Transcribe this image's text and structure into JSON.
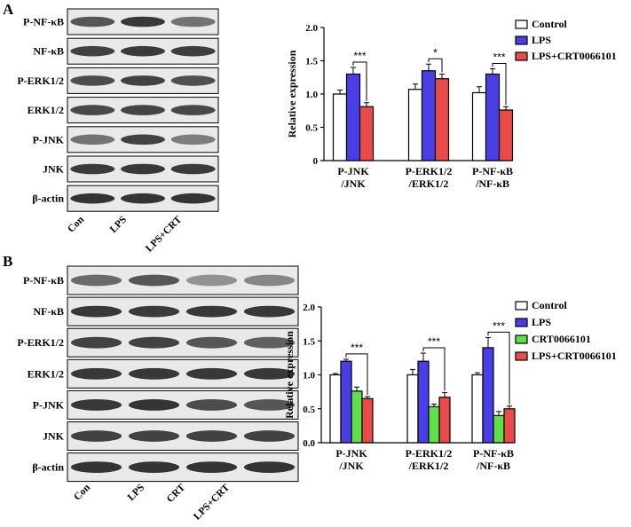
{
  "panels": [
    {
      "letter": "A",
      "blot": {
        "rows": [
          {
            "label": "P-NF-κB",
            "bands": [
              0.75,
              0.9,
              0.6
            ]
          },
          {
            "label": "NF-κB",
            "bands": [
              0.85,
              0.88,
              0.86
            ]
          },
          {
            "label": "P-ERK1/2",
            "bands": [
              0.8,
              0.85,
              0.78
            ]
          },
          {
            "label": "ERK1/2",
            "bands": [
              0.82,
              0.84,
              0.82
            ]
          },
          {
            "label": "P-JNK",
            "bands": [
              0.6,
              0.85,
              0.55
            ]
          },
          {
            "label": "JNK",
            "bands": [
              0.88,
              0.9,
              0.88
            ]
          },
          {
            "label": "β-actin",
            "bands": [
              0.92,
              0.92,
              0.92
            ]
          }
        ],
        "lanes": [
          "Con",
          "LPS",
          "LPS+CRT"
        ]
      },
      "chart": {
        "ylabel": "Relative expression",
        "ylim": [
          0,
          2.0
        ],
        "yticks": [
          "0",
          "0.5",
          "1.0",
          "1.5",
          "2.0"
        ],
        "categories": [
          [
            "P-JNK",
            "/JNK"
          ],
          [
            "P-ERK1/2",
            "/ERK1/2"
          ],
          [
            "P-NF-κB",
            "/NF-κB"
          ]
        ],
        "series": [
          {
            "name": "Control",
            "color": "#ffffff",
            "values": [
              1.0,
              1.07,
              1.02
            ],
            "errors": [
              0.06,
              0.08,
              0.09
            ]
          },
          {
            "name": "LPS",
            "color": "#4a3ee6",
            "values": [
              1.3,
              1.35,
              1.3
            ],
            "errors": [
              0.1,
              0.1,
              0.08
            ]
          },
          {
            "name": "LPS+CRT0066101",
            "color": "#ea4a4a",
            "values": [
              0.81,
              1.23,
              0.76
            ],
            "errors": [
              0.06,
              0.07,
              0.05
            ]
          }
        ],
        "significance": [
          {
            "label": "***",
            "category": 0,
            "from": 1,
            "to": 2
          },
          {
            "label": "*",
            "category": 1,
            "from": 1,
            "to": 2
          },
          {
            "label": "***",
            "category": 2,
            "from": 1,
            "to": 2
          }
        ]
      }
    },
    {
      "letter": "B",
      "blot": {
        "rows": [
          {
            "label": "P-NF-κB",
            "bands": [
              0.65,
              0.75,
              0.45,
              0.5
            ]
          },
          {
            "label": "NF-κB",
            "bands": [
              0.9,
              0.88,
              0.9,
              0.9
            ]
          },
          {
            "label": "P-ERK1/2",
            "bands": [
              0.85,
              0.85,
              0.75,
              0.7
            ]
          },
          {
            "label": "ERK1/2",
            "bands": [
              0.9,
              0.9,
              0.9,
              0.9
            ]
          },
          {
            "label": "P-JNK",
            "bands": [
              0.9,
              0.92,
              0.8,
              0.75
            ]
          },
          {
            "label": "JNK",
            "bands": [
              0.85,
              0.85,
              0.85,
              0.85
            ]
          },
          {
            "label": "β-actin",
            "bands": [
              0.92,
              0.92,
              0.92,
              0.92
            ]
          }
        ],
        "lanes": [
          "Con",
          "LPS",
          "CRT",
          "LPS+CRT"
        ]
      },
      "chart": {
        "ylabel": "Relative expression",
        "ylim": [
          0,
          2.0
        ],
        "yticks": [
          "0.0",
          "0.5",
          "1.0",
          "1.5",
          "2.0"
        ],
        "categories": [
          [
            "P-JNK",
            "/JNK"
          ],
          [
            "P-ERK1/2",
            "/ERK1/2"
          ],
          [
            "P-NF-κB",
            "/NF-κB"
          ]
        ],
        "series": [
          {
            "name": "Control",
            "color": "#ffffff",
            "values": [
              1.0,
              1.0,
              1.0
            ],
            "errors": [
              0.02,
              0.08,
              0.03
            ]
          },
          {
            "name": "LPS",
            "color": "#4a3ee6",
            "values": [
              1.2,
              1.2,
              1.4
            ],
            "errors": [
              0.03,
              0.12,
              0.15
            ]
          },
          {
            "name": "CRT0066101",
            "color": "#5fe04a",
            "values": [
              0.76,
              0.53,
              0.4
            ],
            "errors": [
              0.06,
              0.04,
              0.06
            ]
          },
          {
            "name": "LPS+CRT0066101",
            "color": "#ea4a4a",
            "values": [
              0.65,
              0.67,
              0.5
            ],
            "errors": [
              0.03,
              0.07,
              0.04
            ]
          }
        ],
        "significance": [
          {
            "label": "***",
            "category": 0,
            "from": 1,
            "to": 3
          },
          {
            "label": "***",
            "category": 1,
            "from": 1,
            "to": 3
          },
          {
            "label": "***",
            "category": 2,
            "from": 1,
            "to": 3
          }
        ]
      }
    }
  ]
}
